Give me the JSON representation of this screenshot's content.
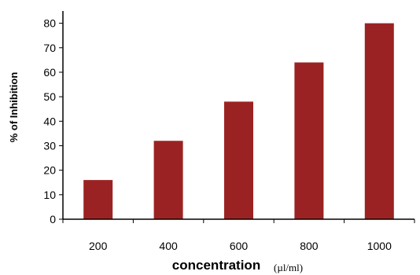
{
  "chart_data": {
    "type": "bar",
    "categories": [
      "200",
      "400",
      "600",
      "800",
      "1000"
    ],
    "values": [
      16,
      32,
      48,
      64,
      80
    ],
    "ylabel": "% of Inhibition",
    "xlabel": "concentration",
    "xunit": "(µl/ml)",
    "ylim": [
      0,
      85
    ],
    "yticks": [
      0,
      10,
      20,
      30,
      40,
      50,
      60,
      70,
      80
    ],
    "grid": false,
    "bar_color": "#9b2222"
  }
}
